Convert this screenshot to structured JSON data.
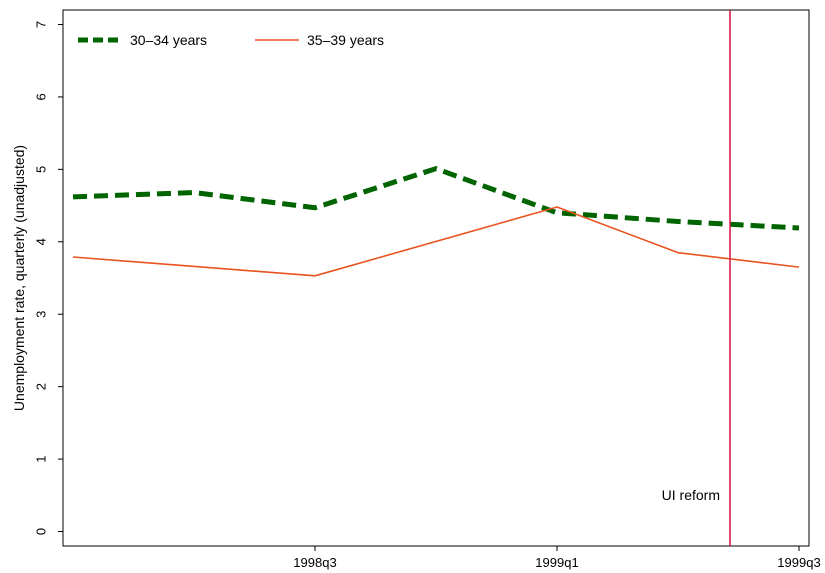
{
  "chart_data": {
    "type": "line",
    "title": "",
    "xlabel": "",
    "ylabel": "Unemployment rate, quarterly (unadjusted)",
    "x": [
      "1998q1",
      "1998q2",
      "1998q3",
      "1998q4",
      "1999q1",
      "1999q2",
      "1999q3"
    ],
    "xlim": [
      "1998q1",
      "1999q3"
    ],
    "x_tick_labels": [
      "1998q3",
      "1999q1",
      "1999q3"
    ],
    "ylim": [
      -0.2,
      7.2
    ],
    "y_ticks": [
      0,
      1,
      2,
      3,
      4,
      5,
      6,
      7
    ],
    "grid": false,
    "legend_placement": "top-left",
    "series": [
      {
        "name": "30–34 years",
        "values": [
          4.62,
          4.68,
          4.47,
          5.01,
          4.4,
          4.28,
          4.19
        ],
        "x": [
          "1998q1",
          "1998q2",
          "1998q3",
          "1998q4",
          "1999q1",
          "1999q2",
          "1999q3"
        ],
        "color": "#006400",
        "style": "dashed"
      },
      {
        "name": "35–39 years",
        "values": [
          3.79,
          3.53,
          4.48,
          3.85,
          3.65
        ],
        "x": [
          "1998q1",
          "1998q3",
          "1999q1",
          "1999q2",
          "1999q3"
        ],
        "color": "#e8531f",
        "style": "solid"
      }
    ],
    "annotations": [
      {
        "type": "vline",
        "x": "1999q2",
        "x_offset_quarter_fraction": 0.43,
        "color": "#d61f4a",
        "label": "UI reform"
      }
    ]
  }
}
